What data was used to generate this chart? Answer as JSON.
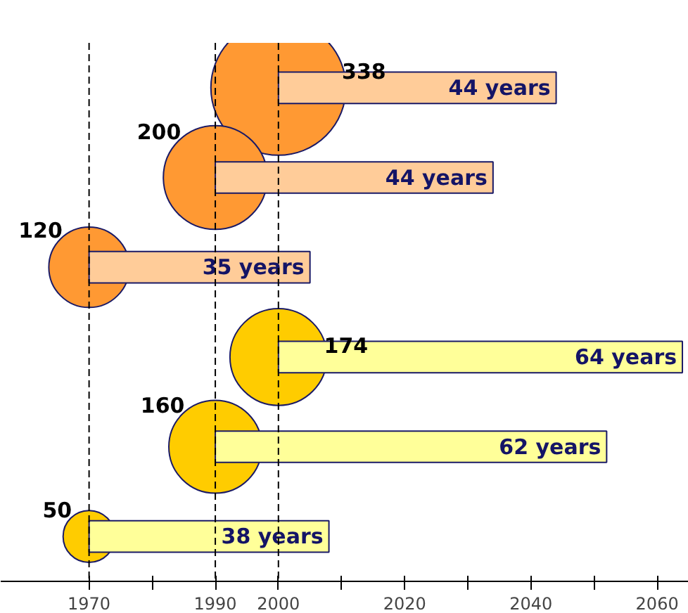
{
  "chart_data": {
    "type": "bar",
    "orientation": "horizontal",
    "categories": [
      null,
      null,
      null,
      null,
      null,
      null
    ],
    "xlim": [
      1956,
      2065
    ],
    "xticks": [
      1970,
      {
        "value": 1980,
        "label": null
      },
      1990,
      2000,
      {
        "value": 2010,
        "label": null
      },
      2020,
      {
        "value": 2030,
        "label": null
      },
      2040,
      {
        "value": 2050,
        "label": null
      },
      2060
    ],
    "ref_lines": [
      {
        "axis": "x",
        "value": 1970,
        "color": "#000000",
        "line_style": "dashed"
      },
      {
        "axis": "x",
        "value": 1990,
        "color": "#000000",
        "line_style": "dashed"
      },
      {
        "axis": "x",
        "value": 2000,
        "color": "#000000",
        "line_style": "dashed"
      }
    ],
    "series": [
      {
        "type": "bubble",
        "values": [
          2000,
          1990,
          1970,
          2000,
          1990,
          1970
        ],
        "sizes": [
          338,
          200,
          120,
          174,
          160,
          50
        ],
        "colors": [
          "#ff9933",
          "#ff9933",
          "#ff9933",
          "#ffcc00",
          "#ffcc00",
          "#ffcc00"
        ],
        "value_labels": [
          "338",
          "200",
          "120",
          "174",
          "160",
          "50"
        ]
      },
      {
        "base": [
          2000,
          1990,
          1970,
          2000,
          1990,
          1970
        ],
        "values": [
          44,
          44,
          35,
          64,
          62,
          38
        ],
        "colors": [
          "#ffcc99",
          "#ffcc99",
          "#ffcc99",
          "#ffff99",
          "#ffff99",
          "#ffff99"
        ],
        "value_labels": [
          "44 years",
          "44 years",
          "35 years",
          "64 years",
          "62 years",
          "38 years"
        ]
      }
    ]
  }
}
